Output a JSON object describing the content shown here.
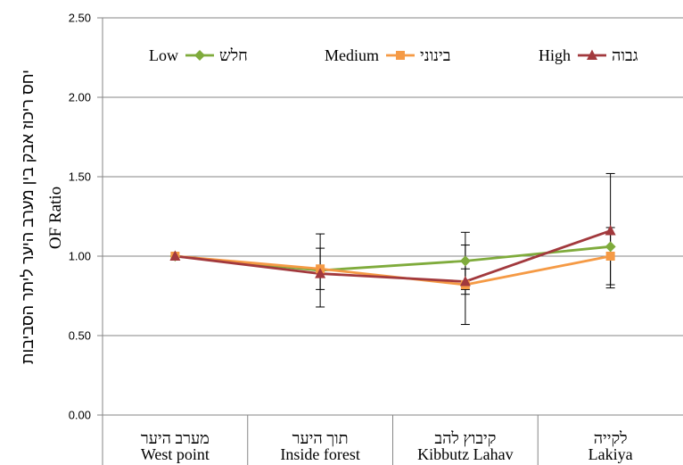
{
  "chart_data": {
    "type": "line",
    "categories": [
      "West point",
      "Inside forest",
      "Kibbutz Lahav",
      "Lakiya"
    ],
    "categories_he": [
      "מערב היער",
      "תוך היער",
      "קיבוץ להב",
      "לקייה"
    ],
    "xlabel": "",
    "ylabel": "OF Ratio",
    "ylabel_he": "יחס ריכוז אבק בין מערב היער ליתר הסביבות",
    "ylim": [
      0,
      2.5
    ],
    "yticks": [
      "0.00",
      "0.50",
      "1.00",
      "1.50",
      "2.00",
      "2.50"
    ],
    "grid": true,
    "legend": "top",
    "series": [
      {
        "name": "Low",
        "name_he": "חלש",
        "color": "#7fab3c",
        "marker": "diamond",
        "values": [
          1.0,
          0.91,
          0.97,
          1.06
        ],
        "error_low": [
          null,
          0.68,
          0.79,
          null
        ],
        "error_high": [
          null,
          1.14,
          1.15,
          null
        ]
      },
      {
        "name": "Medium",
        "name_he": "בינוני",
        "color": "#f59a45",
        "marker": "square",
        "values": [
          1.0,
          0.92,
          0.82,
          1.0
        ],
        "error_low": [
          null,
          0.79,
          0.57,
          0.82
        ],
        "error_high": [
          null,
          1.05,
          1.07,
          1.18
        ]
      },
      {
        "name": "High",
        "name_he": "גבוה",
        "color": "#a2393d",
        "marker": "triangle",
        "values": [
          1.0,
          0.89,
          0.84,
          1.16
        ],
        "error_low": [
          null,
          null,
          0.76,
          0.8
        ],
        "error_high": [
          null,
          null,
          0.92,
          1.52
        ]
      }
    ]
  }
}
